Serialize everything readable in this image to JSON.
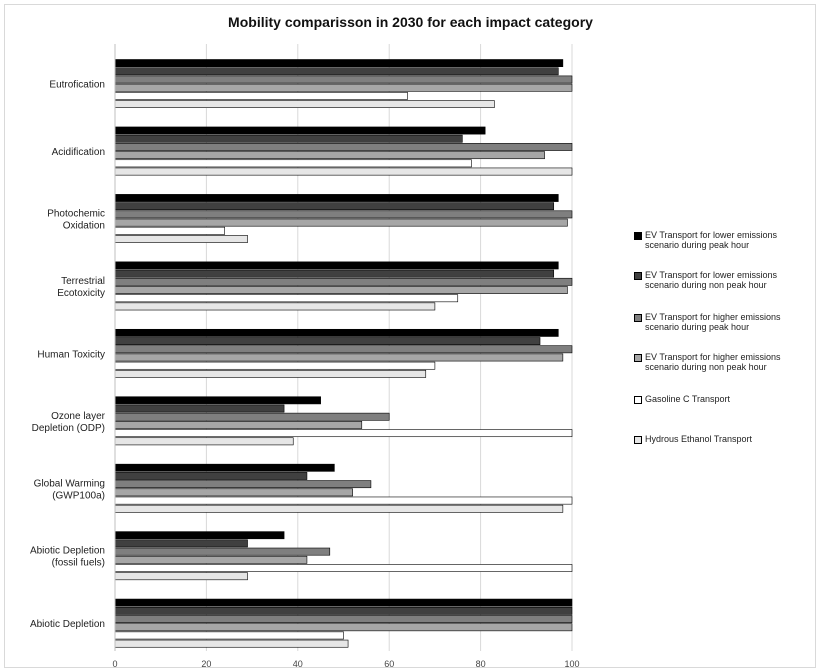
{
  "chart_data": {
    "type": "bar",
    "orientation": "horizontal",
    "title": "Mobility comparisson in 2030 for each impact category",
    "xlabel": "",
    "ylabel": "",
    "xlim": [
      0,
      100
    ],
    "x_ticks": [
      0,
      20,
      40,
      60,
      80,
      100
    ],
    "grid": "vertical",
    "legend_position": "right",
    "categories": [
      [
        "Eutrofication"
      ],
      [
        "Acidification"
      ],
      [
        "Photochemic",
        "Oxidation"
      ],
      [
        "Terrestrial",
        "Ecotoxicity"
      ],
      [
        "Human Toxicity"
      ],
      [
        "Ozone layer",
        "Depletion (ODP)"
      ],
      [
        "Global Warming",
        "(GWP100a)"
      ],
      [
        "Abiotic Depletion",
        "(fossil fuels)"
      ],
      [
        "Abiotic Depletion"
      ]
    ],
    "series": [
      {
        "name": [
          "EV Transport for lower emissions",
          "scenario during peak hour"
        ],
        "color": "#000000",
        "values": [
          98,
          81,
          97,
          97,
          97,
          45,
          48,
          37,
          100
        ]
      },
      {
        "name": [
          "EV Transport for lower emissions",
          "scenario during non peak hour"
        ],
        "color": "#404040",
        "values": [
          97,
          76,
          96,
          96,
          93,
          37,
          42,
          29,
          100
        ]
      },
      {
        "name": [
          "EV Transport for higher emissions",
          "scenario during peak hour"
        ],
        "color": "#7f7f7f",
        "values": [
          100,
          100,
          100,
          100,
          100,
          60,
          56,
          47,
          100
        ]
      },
      {
        "name": [
          "EV Transport for higher emissions",
          "scenario during non peak hour"
        ],
        "color": "#a6a6a6",
        "values": [
          100,
          94,
          99,
          99,
          98,
          54,
          52,
          42,
          100
        ]
      },
      {
        "name": [
          "Gasoline C Transport"
        ],
        "color": "#ffffff",
        "values": [
          64,
          78,
          24,
          75,
          70,
          100,
          100,
          100,
          50
        ]
      },
      {
        "name": [
          "Hydrous Ethanol Transport"
        ],
        "color": "#e6e6e6",
        "values": [
          83,
          100,
          29,
          70,
          68,
          39,
          98,
          29,
          51
        ]
      }
    ]
  }
}
